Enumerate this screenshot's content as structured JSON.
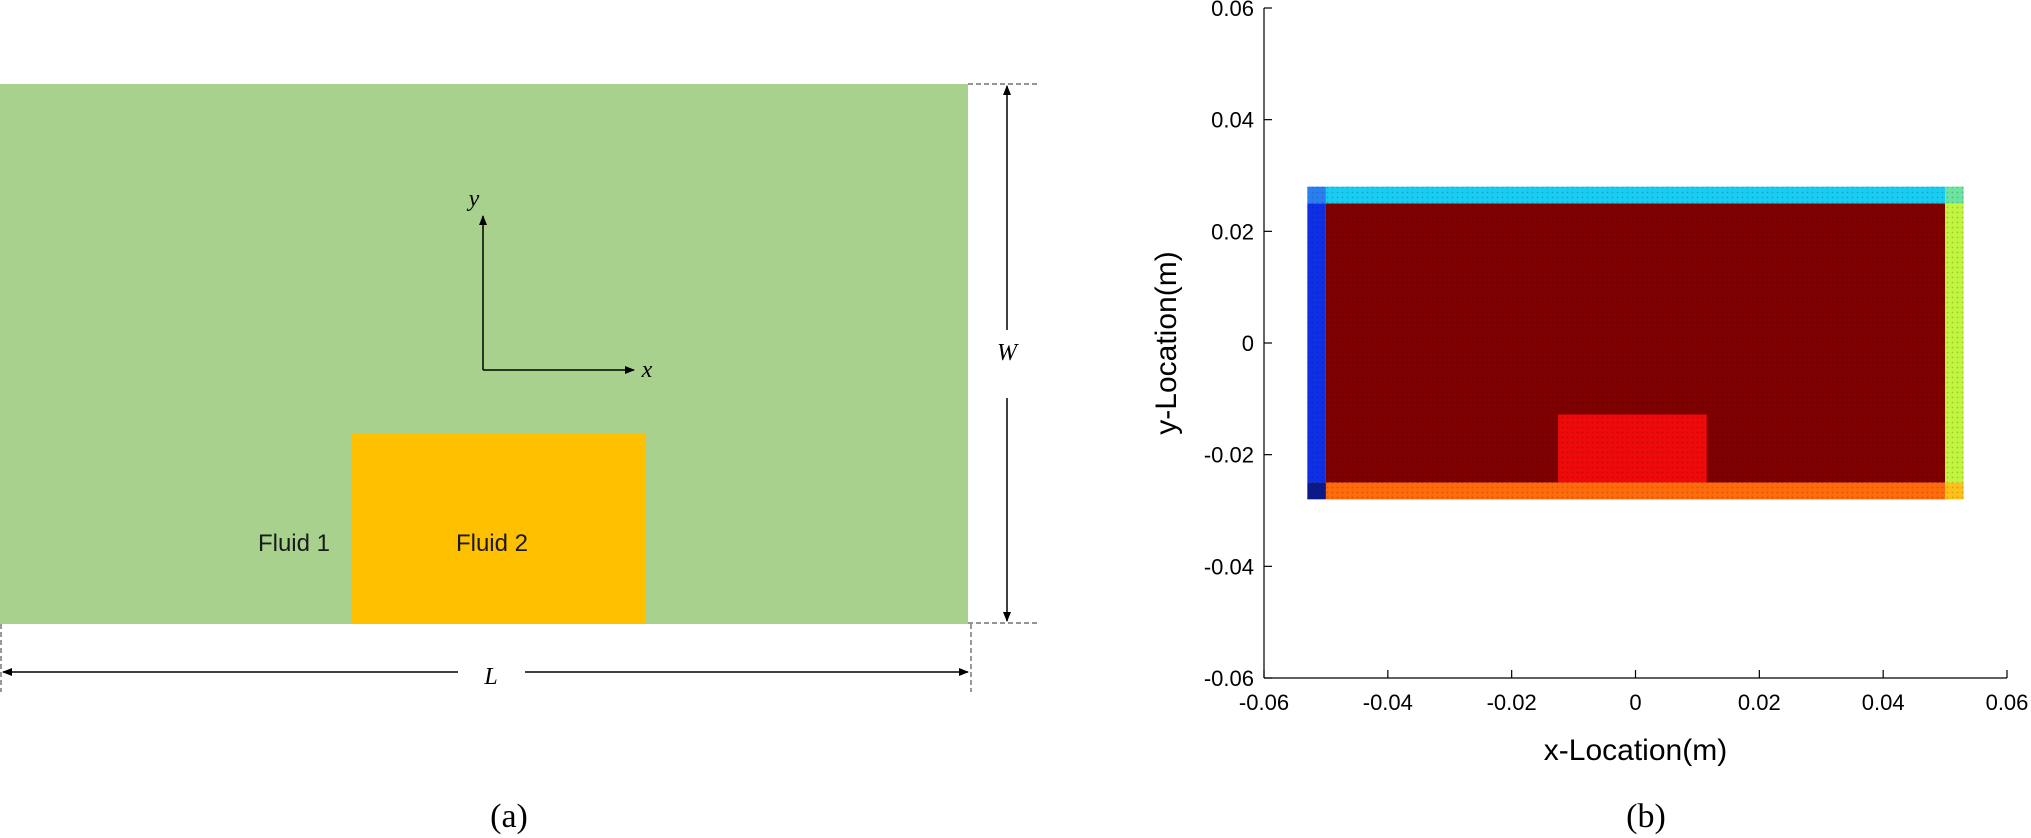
{
  "panel_a": {
    "caption": "(a)",
    "fluid1_label": "Fluid 1",
    "fluid2_label": "Fluid 2",
    "axis_x_label": "x",
    "axis_y_label": "y",
    "dim_length_label": "L",
    "dim_width_label": "W",
    "colors": {
      "fluid1": "#a9d18e",
      "fluid2": "#ffc000"
    }
  },
  "panel_b": {
    "caption": "(b)"
  },
  "chart_data": {
    "type": "scatter",
    "title": "",
    "xlabel": "x-Location(m)",
    "ylabel": "y-Location(m)",
    "xlim": [
      -0.06,
      0.06
    ],
    "ylim": [
      -0.06,
      0.06
    ],
    "xticks": [
      "-0.06",
      "-0.04",
      "-0.02",
      "0",
      "0.02",
      "0.04",
      "0.06"
    ],
    "yticks": [
      "-0.06",
      "-0.04",
      "-0.02",
      "0",
      "0.02",
      "0.04",
      "0.06"
    ],
    "grid": false,
    "regions": [
      {
        "name": "fluid-1-domain",
        "x": [
          -0.05,
          0.05
        ],
        "y": [
          -0.025,
          0.025
        ],
        "color": "#7f0000"
      },
      {
        "name": "fluid-2-block",
        "x": [
          -0.0125,
          0.0115
        ],
        "y": [
          -0.025,
          -0.0128
        ],
        "color": "#ee0a0a"
      },
      {
        "name": "left-wall",
        "x": [
          -0.053,
          -0.05
        ],
        "y": [
          -0.025,
          0.025
        ],
        "color": "#0f2fe6"
      },
      {
        "name": "right-wall",
        "x": [
          0.05,
          0.053
        ],
        "y": [
          -0.025,
          0.025
        ],
        "color": "#c2f540"
      },
      {
        "name": "top-wall",
        "x": [
          -0.05,
          0.05
        ],
        "y": [
          0.025,
          0.028
        ],
        "color": "#19ccf2"
      },
      {
        "name": "bottom-wall",
        "x": [
          -0.05,
          0.05
        ],
        "y": [
          -0.028,
          -0.025
        ],
        "color": "#ff6a0a"
      },
      {
        "name": "corner-top-left",
        "x": [
          -0.053,
          -0.05
        ],
        "y": [
          0.025,
          0.028
        ],
        "color": "#2a7ff0"
      },
      {
        "name": "corner-top-right",
        "x": [
          0.05,
          0.053
        ],
        "y": [
          0.025,
          0.028
        ],
        "color": "#6ae4a0"
      },
      {
        "name": "corner-bottom-left",
        "x": [
          -0.053,
          -0.05
        ],
        "y": [
          -0.028,
          -0.025
        ],
        "color": "#0a1a8a"
      },
      {
        "name": "corner-bottom-right",
        "x": [
          0.05,
          0.053
        ],
        "y": [
          -0.028,
          -0.025
        ],
        "color": "#ffc01a"
      }
    ]
  }
}
